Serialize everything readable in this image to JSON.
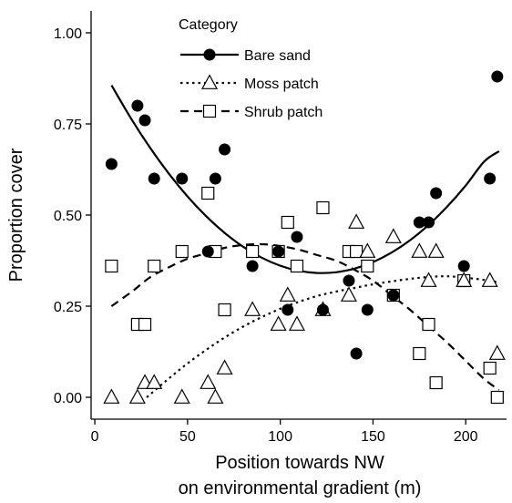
{
  "chart_data": {
    "type": "scatter",
    "xlabel": "Position towards NW",
    "xlabel_line2": "on environmental gradient (m)",
    "ylabel": "Proportion cover",
    "xlim": [
      -2,
      222
    ],
    "ylim": [
      -0.06,
      1.06
    ],
    "x_ticks": [
      0,
      50,
      100,
      150,
      200
    ],
    "x_tick_labels": [
      "0",
      "50",
      "100",
      "150",
      "200"
    ],
    "y_ticks": [
      0,
      0.25,
      0.5,
      0.75,
      1.0
    ],
    "y_tick_labels": [
      "0.00",
      "0.25",
      "0.50",
      "0.75",
      "1.00"
    ],
    "grid": false,
    "legend": {
      "title": "Category",
      "placement": "top-center",
      "entries": [
        "Bare sand",
        "Moss patch",
        "Shrub patch"
      ]
    },
    "series": [
      {
        "name": "Bare sand",
        "marker": "filled-circle",
        "line": "solid",
        "color": "#000000",
        "x": [
          9,
          23,
          27,
          32,
          47,
          61,
          65,
          70,
          85,
          99,
          104,
          109,
          123,
          137,
          141,
          147,
          161,
          175,
          180,
          184,
          199,
          213,
          217
        ],
        "y": [
          0.64,
          0.8,
          0.76,
          0.6,
          0.6,
          0.4,
          0.6,
          0.68,
          0.36,
          0.4,
          0.24,
          0.44,
          0.24,
          0.32,
          0.12,
          0.24,
          0.28,
          0.48,
          0.48,
          0.56,
          0.36,
          0.6,
          0.88
        ],
        "fit_x": [
          9,
          20,
          30,
          40,
          50,
          60,
          70,
          80,
          90,
          100,
          110,
          120,
          130,
          140,
          150,
          160,
          170,
          180,
          190,
          200,
          210,
          218
        ],
        "fit_y": [
          0.856,
          0.761,
          0.683,
          0.613,
          0.551,
          0.497,
          0.451,
          0.413,
          0.383,
          0.361,
          0.347,
          0.341,
          0.343,
          0.353,
          0.371,
          0.397,
          0.431,
          0.473,
          0.523,
          0.581,
          0.647,
          0.675
        ]
      },
      {
        "name": "Moss patch",
        "marker": "open-triangle",
        "line": "dotted",
        "color": "#000000",
        "x": [
          9,
          23,
          27,
          32,
          47,
          61,
          65,
          70,
          85,
          99,
          104,
          109,
          123,
          137,
          141,
          147,
          161,
          175,
          180,
          184,
          199,
          213,
          217
        ],
        "y": [
          0.0,
          0.0,
          0.04,
          0.04,
          0.0,
          0.04,
          0.0,
          0.08,
          0.24,
          0.2,
          0.28,
          0.2,
          0.24,
          0.28,
          0.48,
          0.4,
          0.44,
          0.4,
          0.32,
          0.4,
          0.32,
          0.32,
          0.12
        ],
        "fit_x": [
          28,
          40,
          50,
          60,
          70,
          80,
          90,
          100,
          110,
          120,
          130,
          140,
          150,
          160,
          170,
          180,
          190,
          200,
          210,
          218
        ],
        "fit_y": [
          0.0,
          0.052,
          0.093,
          0.13,
          0.164,
          0.194,
          0.22,
          0.243,
          0.262,
          0.278,
          0.29,
          0.3,
          0.31,
          0.318,
          0.325,
          0.33,
          0.332,
          0.328,
          0.322,
          0.315
        ]
      },
      {
        "name": "Shrub patch",
        "marker": "open-square",
        "line": "dashed",
        "color": "#000000",
        "x": [
          9,
          23,
          27,
          32,
          47,
          61,
          65,
          70,
          85,
          99,
          104,
          109,
          123,
          137,
          141,
          147,
          161,
          175,
          180,
          184,
          199,
          213,
          217
        ],
        "y": [
          0.36,
          0.2,
          0.2,
          0.36,
          0.4,
          0.56,
          0.4,
          0.24,
          0.4,
          0.4,
          0.48,
          0.36,
          0.52,
          0.4,
          0.4,
          0.36,
          0.28,
          0.12,
          0.2,
          0.04,
          0.32,
          0.08,
          0.0
        ],
        "fit_x": [
          9,
          20,
          30,
          40,
          50,
          60,
          70,
          80,
          90,
          100,
          110,
          120,
          130,
          140,
          150,
          160,
          170,
          180,
          190,
          200,
          210,
          218
        ],
        "fit_y": [
          0.25,
          0.29,
          0.33,
          0.357,
          0.38,
          0.395,
          0.41,
          0.418,
          0.42,
          0.415,
          0.405,
          0.39,
          0.375,
          0.35,
          0.32,
          0.28,
          0.24,
          0.195,
          0.15,
          0.1,
          0.05,
          0.02
        ]
      }
    ]
  }
}
